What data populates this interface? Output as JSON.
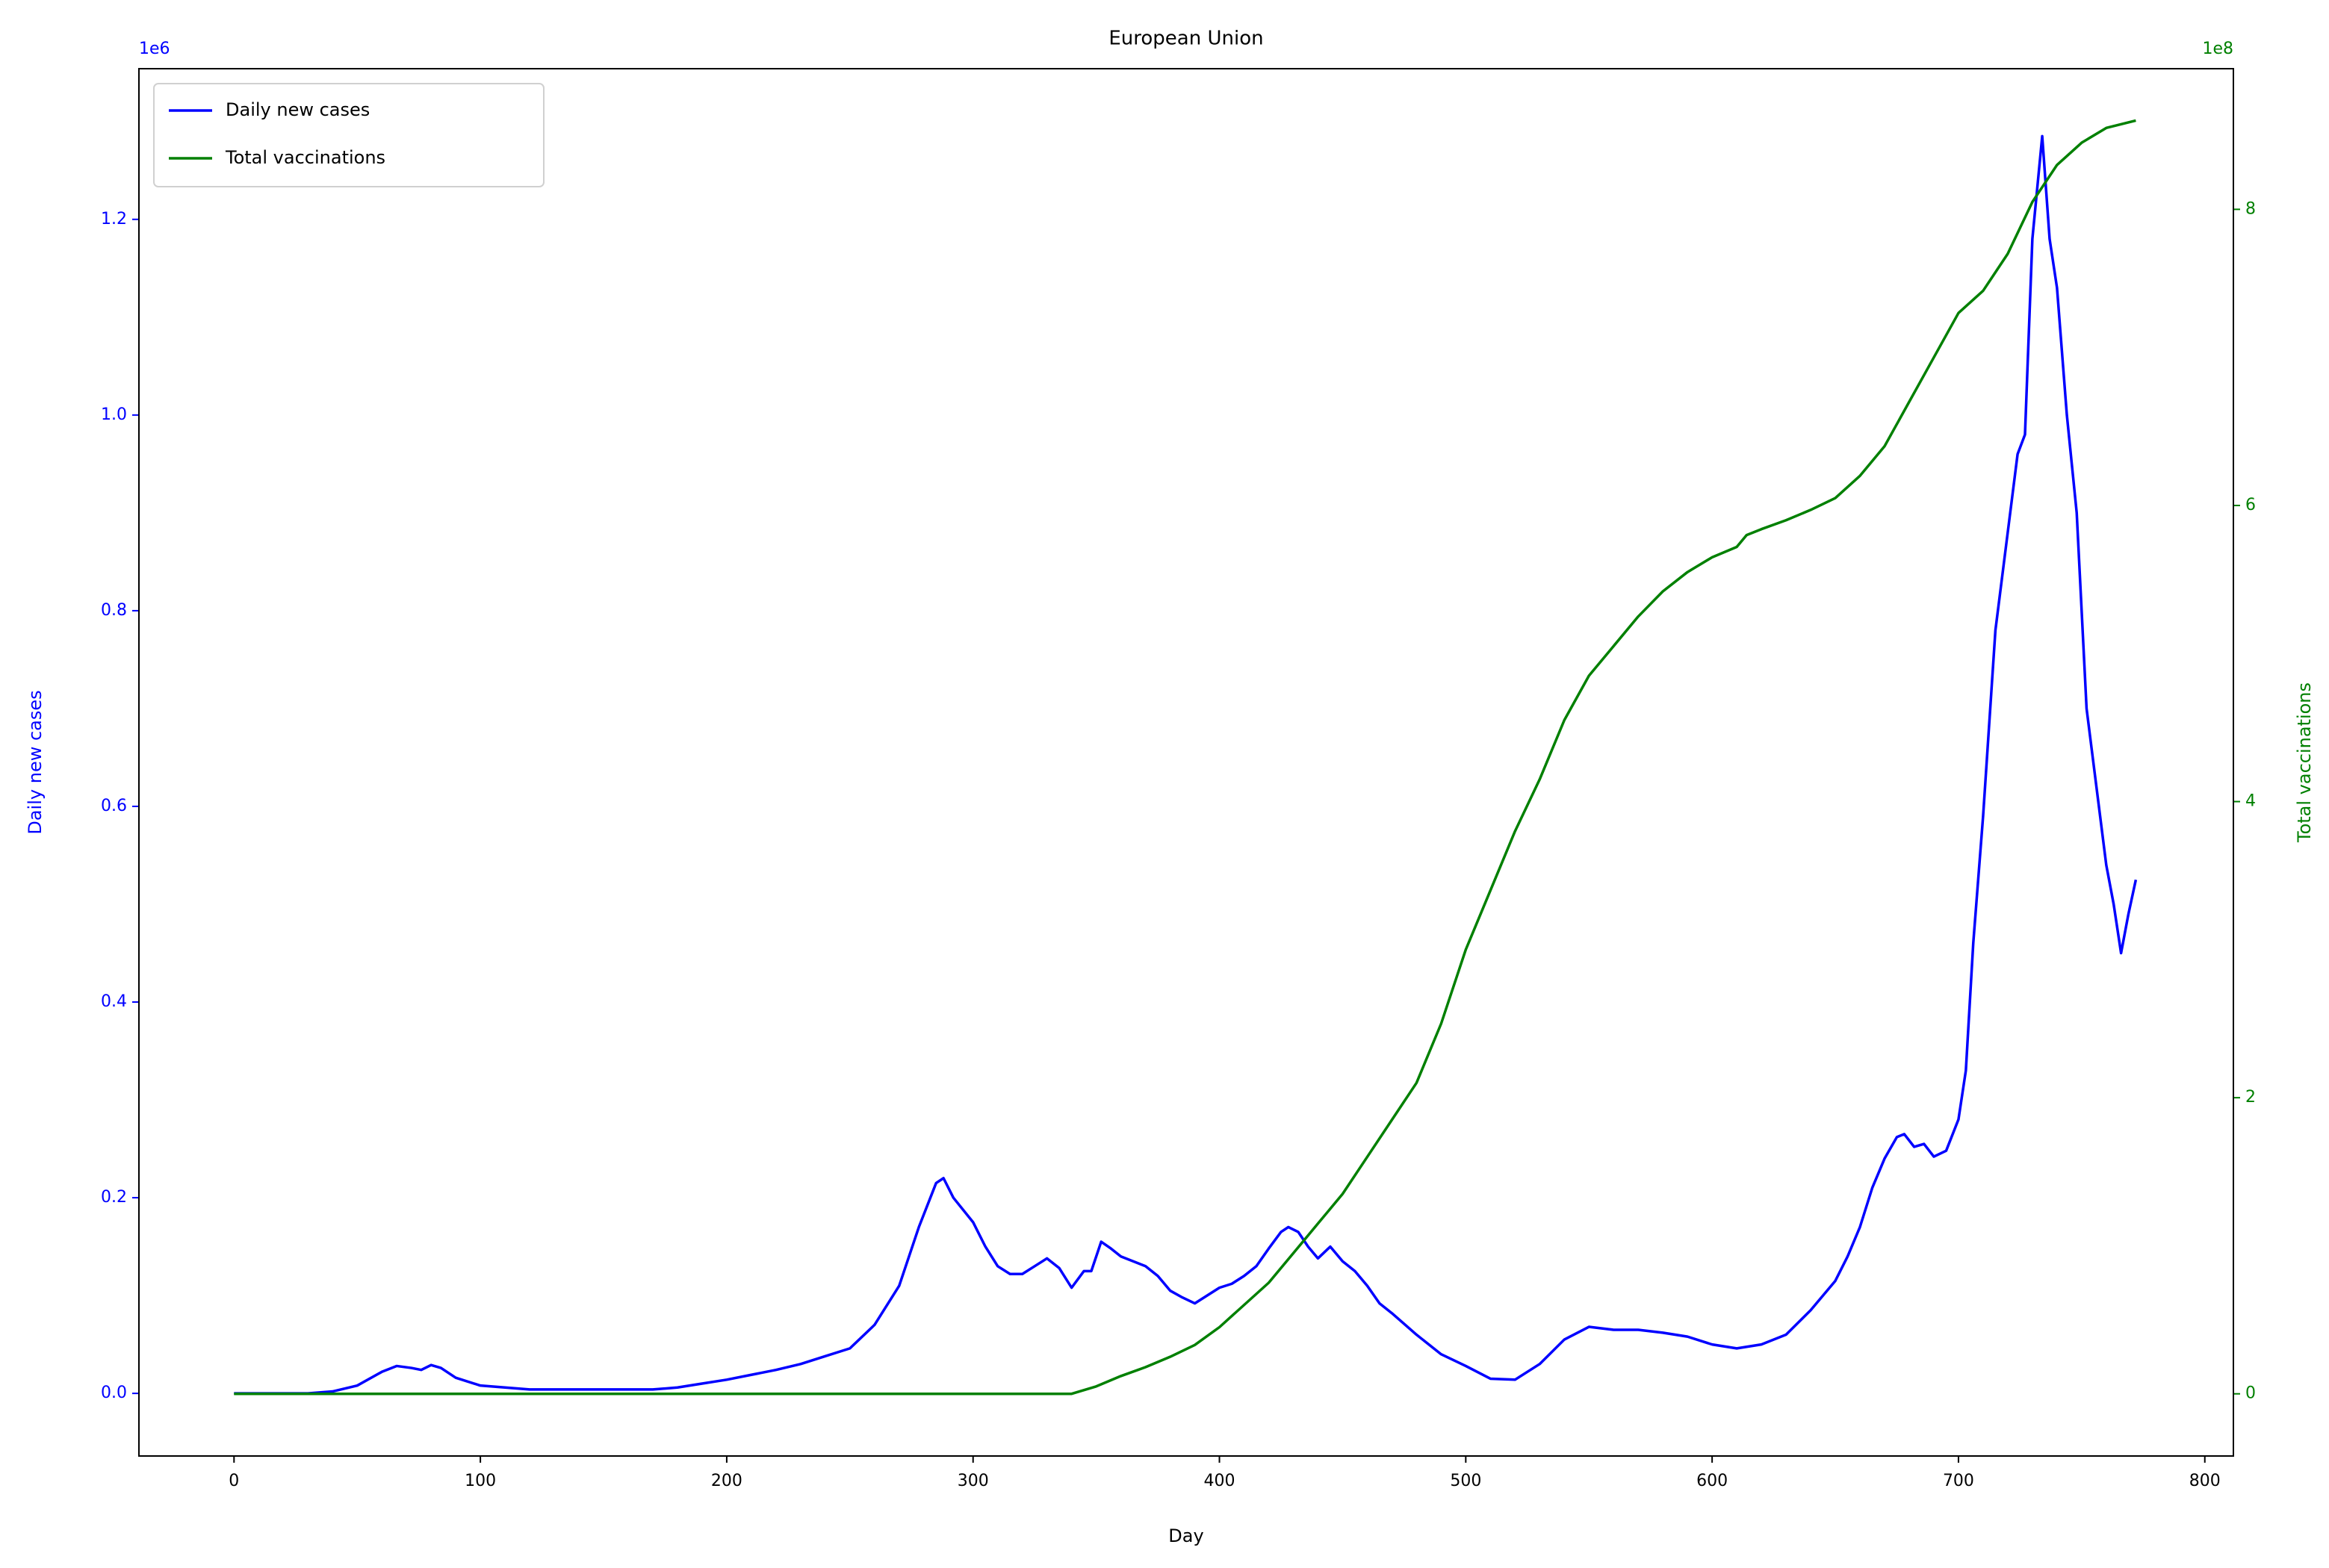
{
  "chart_data": {
    "type": "line",
    "title": "European Union",
    "xlabel": "Day",
    "ylabel": "Daily new cases",
    "y2label": "Total vaccinations",
    "y_offset_label": "1e6",
    "y2_offset_label": "1e8",
    "xlim": [
      -38.6,
      811.6
    ],
    "xticks": [
      0,
      100,
      200,
      300,
      400,
      500,
      600,
      700,
      800
    ],
    "ylim": [
      -64000,
      1354000
    ],
    "yticks": [
      {
        "value": 0,
        "label": "0.0"
      },
      {
        "value": 200000,
        "label": "0.2"
      },
      {
        "value": 400000,
        "label": "0.4"
      },
      {
        "value": 600000,
        "label": "0.6"
      },
      {
        "value": 800000,
        "label": "0.8"
      },
      {
        "value": 1000000,
        "label": "1.0"
      },
      {
        "value": 1200000,
        "label": "1.2"
      }
    ],
    "y2lim": [
      -42000000,
      895000000
    ],
    "y2ticks": [
      {
        "value": 0,
        "label": "0"
      },
      {
        "value": 200000000,
        "label": "2"
      },
      {
        "value": 400000000,
        "label": "4"
      },
      {
        "value": 600000000,
        "label": "6"
      },
      {
        "value": 800000000,
        "label": "8"
      }
    ],
    "legend": "upper left",
    "series": [
      {
        "name": "Daily new cases",
        "color": "#0000ff",
        "axis": "y",
        "x": [
          0,
          30,
          40,
          50,
          60,
          66,
          72,
          76,
          80,
          84,
          90,
          100,
          110,
          120,
          150,
          170,
          180,
          190,
          200,
          210,
          220,
          230,
          240,
          250,
          260,
          270,
          278,
          285,
          288,
          292,
          300,
          305,
          310,
          315,
          320,
          325,
          330,
          335,
          340,
          345,
          348,
          352,
          356,
          360,
          365,
          370,
          375,
          380,
          385,
          390,
          395,
          400,
          405,
          410,
          415,
          420,
          425,
          428,
          432,
          436,
          440,
          445,
          450,
          455,
          460,
          465,
          470,
          480,
          490,
          500,
          510,
          520,
          530,
          540,
          550,
          560,
          570,
          580,
          590,
          600,
          610,
          620,
          630,
          640,
          650,
          655,
          660,
          665,
          670,
          675,
          678,
          682,
          686,
          690,
          695,
          700,
          703,
          706,
          710,
          715,
          720,
          724,
          727,
          730,
          734,
          737,
          740,
          744,
          748,
          752,
          756,
          760,
          763,
          766,
          769,
          772
        ],
        "values": [
          0,
          0,
          2000,
          8000,
          22000,
          28000,
          26000,
          24000,
          29000,
          26000,
          16000,
          8000,
          6000,
          4000,
          4000,
          4000,
          6000,
          10000,
          14000,
          19000,
          24000,
          30000,
          38000,
          46000,
          70000,
          110000,
          170000,
          215000,
          220000,
          200000,
          175000,
          150000,
          130000,
          122000,
          122000,
          130000,
          138000,
          128000,
          108000,
          125000,
          125000,
          155000,
          148000,
          140000,
          135000,
          130000,
          120000,
          105000,
          98000,
          92000,
          100000,
          108000,
          112000,
          120000,
          130000,
          148000,
          165000,
          170000,
          165000,
          150000,
          138000,
          150000,
          135000,
          125000,
          110000,
          92000,
          82000,
          60000,
          40000,
          28000,
          15000,
          14000,
          30000,
          55000,
          68000,
          65000,
          65000,
          62000,
          58000,
          50000,
          46000,
          50000,
          60000,
          85000,
          115000,
          140000,
          170000,
          210000,
          240000,
          262000,
          265000,
          252000,
          255000,
          242000,
          248000,
          280000,
          330000,
          460000,
          590000,
          780000,
          880000,
          960000,
          980000,
          1180000,
          1285000,
          1180000,
          1130000,
          1000000,
          900000,
          700000,
          620000,
          540000,
          500000,
          450000,
          490000,
          525000
        ]
      },
      {
        "name": "Total vaccinations",
        "color": "#008000",
        "axis": "y2",
        "x": [
          0,
          340,
          350,
          360,
          370,
          380,
          390,
          400,
          410,
          420,
          430,
          440,
          450,
          460,
          470,
          480,
          490,
          500,
          510,
          520,
          530,
          540,
          550,
          560,
          570,
          580,
          590,
          600,
          610,
          614,
          620,
          630,
          640,
          650,
          660,
          670,
          680,
          690,
          700,
          710,
          720,
          730,
          740,
          750,
          760,
          772
        ],
        "values": [
          0,
          0,
          5000000,
          12000000,
          18000000,
          25000000,
          33000000,
          45000000,
          60000000,
          75000000,
          95000000,
          115000000,
          135000000,
          160000000,
          185000000,
          210000000,
          250000000,
          300000000,
          340000000,
          380000000,
          415000000,
          455000000,
          485000000,
          505000000,
          525000000,
          542000000,
          555000000,
          565000000,
          572000000,
          580000000,
          584000000,
          590000000,
          597000000,
          605000000,
          620000000,
          640000000,
          670000000,
          700000000,
          730000000,
          745000000,
          770000000,
          805000000,
          830000000,
          845000000,
          855000000,
          860000000
        ]
      }
    ]
  }
}
